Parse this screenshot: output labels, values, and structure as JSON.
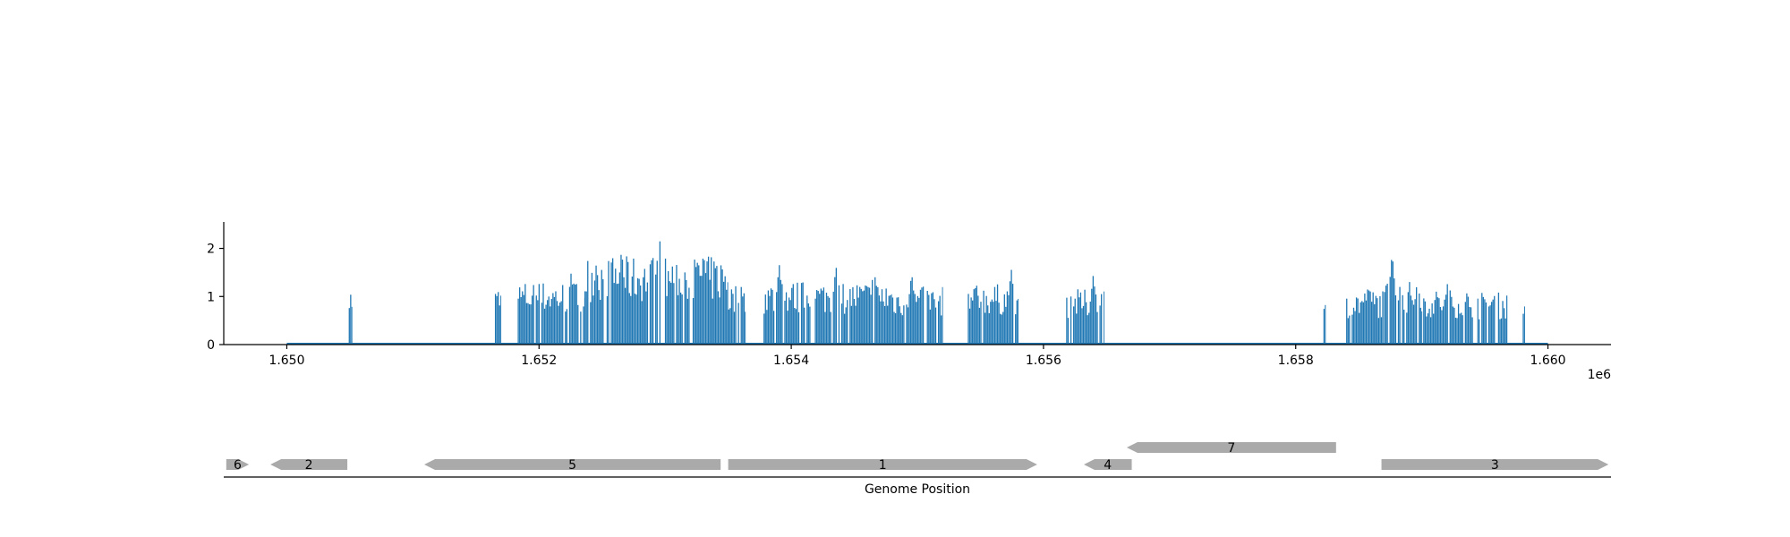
{
  "chart_data": [
    {
      "type": "bar",
      "panel": "coverage",
      "color": "#1f77b4",
      "xlim": [
        1649500,
        1660500
      ],
      "ylim": [
        0,
        2.55
      ],
      "x_ticks": [
        1650000,
        1652000,
        1654000,
        1656000,
        1658000,
        1660000
      ],
      "x_tick_labels": [
        "1.650",
        "1.652",
        "1.654",
        "1.656",
        "1.658",
        "1.660"
      ],
      "x_offset_label": "1e6",
      "y_ticks": [
        0,
        1,
        2
      ],
      "y_tick_labels": [
        "0",
        "1",
        "2"
      ],
      "baseline": [
        1650000,
        1660000
      ],
      "segments": [
        {
          "range": [
            1650480,
            1650520
          ],
          "level": 1.05
        },
        {
          "range": [
            1651650,
            1651700
          ],
          "level": 1.05
        },
        {
          "range": [
            1651820,
            1652360
          ],
          "level": 1.15
        },
        {
          "range": [
            1652360,
            1653500
          ],
          "level": 1.6
        },
        {
          "range": [
            1653500,
            1653640
          ],
          "level": 1.1
        },
        {
          "range": [
            1653780,
            1654800
          ],
          "level": 1.15
        },
        {
          "range": [
            1654800,
            1655200
          ],
          "level": 1.05
        },
        {
          "range": [
            1655400,
            1655800
          ],
          "level": 1.1
        },
        {
          "range": [
            1656180,
            1656480
          ],
          "level": 1.0
        },
        {
          "range": [
            1658220,
            1658240
          ],
          "level": 0.78
        },
        {
          "range": [
            1658400,
            1658700
          ],
          "level": 1.0
        },
        {
          "range": [
            1658700,
            1659000
          ],
          "level": 1.15
        },
        {
          "range": [
            1659000,
            1659450
          ],
          "level": 1.0
        },
        {
          "range": [
            1659450,
            1659680
          ],
          "level": 0.95
        },
        {
          "range": [
            1659800,
            1659820
          ],
          "level": 0.85
        }
      ],
      "peaks": [
        {
          "x": 1652950,
          "y": 2.3
        },
        {
          "x": 1652650,
          "y": 2.0
        },
        {
          "x": 1653300,
          "y": 1.95
        },
        {
          "x": 1652450,
          "y": 1.7
        },
        {
          "x": 1652250,
          "y": 1.5
        },
        {
          "x": 1653600,
          "y": 1.2
        },
        {
          "x": 1653900,
          "y": 1.68
        },
        {
          "x": 1654350,
          "y": 1.65
        },
        {
          "x": 1654650,
          "y": 1.68
        },
        {
          "x": 1654950,
          "y": 1.5
        },
        {
          "x": 1655740,
          "y": 1.58
        },
        {
          "x": 1655450,
          "y": 1.28
        },
        {
          "x": 1656390,
          "y": 1.45
        },
        {
          "x": 1656470,
          "y": 1.25
        },
        {
          "x": 1658760,
          "y": 1.92
        },
        {
          "x": 1658960,
          "y": 1.35
        },
        {
          "x": 1659200,
          "y": 1.3
        },
        {
          "x": 1658570,
          "y": 1.25
        }
      ]
    },
    {
      "type": "gene-track",
      "panel": "genes",
      "xlabel": "Genome Position",
      "gene_color": "#aaaaaa",
      "genes": [
        {
          "label": "6",
          "start": 1649520,
          "end": 1649700,
          "strand": "+",
          "row": 0
        },
        {
          "label": "2",
          "start": 1649870,
          "end": 1650480,
          "strand": "-",
          "row": 0
        },
        {
          "label": "5",
          "start": 1651090,
          "end": 1653440,
          "strand": "-",
          "row": 0
        },
        {
          "label": "1",
          "start": 1653500,
          "end": 1655950,
          "strand": "+",
          "row": 0
        },
        {
          "label": "4",
          "start": 1656320,
          "end": 1656700,
          "strand": "-",
          "row": 0
        },
        {
          "label": "7",
          "start": 1656660,
          "end": 1658320,
          "strand": "-",
          "row": 1
        },
        {
          "label": "3",
          "start": 1658680,
          "end": 1660480,
          "strand": "+",
          "row": 0
        }
      ]
    }
  ]
}
